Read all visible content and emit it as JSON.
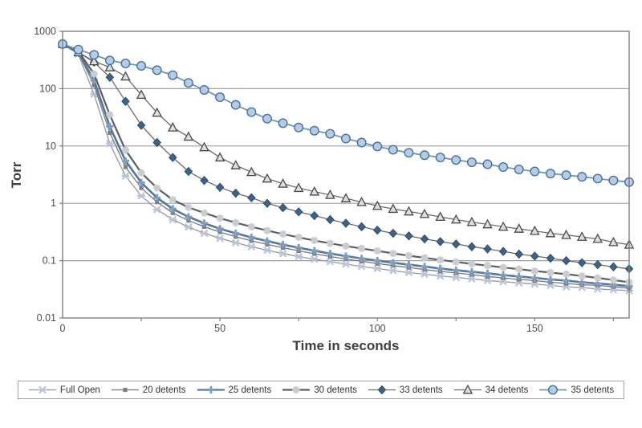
{
  "figure": {
    "background_color": "#ffffff",
    "plot_border_color": "#7f7f7f",
    "gridline_color": "#a0a0a0"
  },
  "chart_data": {
    "type": "line",
    "title": "",
    "xlabel": "Time in seconds",
    "ylabel": "Torr",
    "y_scale": "log",
    "xlim": [
      0,
      180
    ],
    "ylim": [
      0.01,
      1000
    ],
    "x_ticks": [
      0,
      50,
      100,
      150
    ],
    "x_minor_tick_step": 25,
    "y_ticks": [
      1000,
      100,
      10,
      1,
      0.1,
      0.01
    ],
    "grid": "horizontal decade gridlines on",
    "legend_position": "bottom",
    "x": [
      0,
      5,
      10,
      15,
      20,
      25,
      30,
      35,
      40,
      45,
      50,
      55,
      60,
      65,
      70,
      75,
      80,
      85,
      90,
      95,
      100,
      105,
      110,
      115,
      120,
      125,
      130,
      135,
      140,
      145,
      150,
      155,
      160,
      165,
      170,
      175,
      180
    ],
    "series": [
      {
        "name": "Full Open",
        "marker": "x-star",
        "line_color": "#9097a3",
        "line_width": 1.3,
        "marker_color": "#b9c3d7",
        "marker_edge": "#b9c3d7",
        "values": [
          600,
          400,
          80,
          11,
          3.0,
          1.35,
          0.78,
          0.52,
          0.385,
          0.3,
          0.245,
          0.205,
          0.175,
          0.152,
          0.133,
          0.118,
          0.106,
          0.096,
          0.087,
          0.079,
          0.073,
          0.067,
          0.062,
          0.058,
          0.054,
          0.051,
          0.048,
          0.045,
          0.043,
          0.041,
          0.039,
          0.037,
          0.035,
          0.034,
          0.032,
          0.031,
          0.03
        ]
      },
      {
        "name": "20 detents",
        "marker": "square",
        "line_color": "#787878",
        "line_width": 1.3,
        "marker_color": "#7f7f7f",
        "marker_edge": "#6a6a6a",
        "values": [
          600,
          420,
          115,
          17,
          4.3,
          1.85,
          1.05,
          0.68,
          0.5,
          0.39,
          0.315,
          0.262,
          0.222,
          0.192,
          0.168,
          0.148,
          0.132,
          0.118,
          0.107,
          0.097,
          0.089,
          0.082,
          0.076,
          0.07,
          0.065,
          0.061,
          0.057,
          0.053,
          0.05,
          0.047,
          0.045,
          0.042,
          0.04,
          0.038,
          0.037,
          0.035,
          0.033
        ]
      },
      {
        "name": "25 detents",
        "marker": "plus",
        "line_color": "#53779e",
        "line_width": 2.6,
        "marker_color": "#7e9dbf",
        "marker_edge": "#7e9dbf",
        "values": [
          600,
          430,
          140,
          22,
          5.5,
          2.3,
          1.25,
          0.8,
          0.58,
          0.45,
          0.36,
          0.3,
          0.255,
          0.22,
          0.19,
          0.168,
          0.149,
          0.133,
          0.12,
          0.109,
          0.1,
          0.092,
          0.085,
          0.079,
          0.073,
          0.068,
          0.064,
          0.06,
          0.056,
          0.053,
          0.05,
          0.047,
          0.045,
          0.042,
          0.04,
          0.038,
          0.036
        ]
      },
      {
        "name": "30 detents",
        "marker": "asterisk",
        "line_color": "#5f5f5f",
        "line_width": 2.2,
        "marker_color": "#c9cdd3",
        "marker_edge": "#c9cdd3",
        "values": [
          600,
          450,
          180,
          35,
          8.5,
          3.4,
          1.85,
          1.15,
          0.85,
          0.68,
          0.55,
          0.46,
          0.39,
          0.335,
          0.29,
          0.255,
          0.225,
          0.2,
          0.18,
          0.163,
          0.148,
          0.134,
          0.122,
          0.112,
          0.103,
          0.095,
          0.088,
          0.082,
          0.076,
          0.071,
          0.066,
          0.062,
          0.058,
          0.054,
          0.05,
          0.046,
          0.042
        ]
      },
      {
        "name": "33 detents",
        "marker": "diamond",
        "line_color": "#6b6b6b",
        "line_width": 1.3,
        "marker_color": "#3d6486",
        "marker_edge": "#2e4d69",
        "values": [
          600,
          430,
          290,
          158,
          60,
          23,
          11.5,
          6.3,
          3.6,
          2.5,
          1.9,
          1.5,
          1.25,
          1.0,
          0.84,
          0.71,
          0.61,
          0.52,
          0.45,
          0.39,
          0.34,
          0.3,
          0.27,
          0.24,
          0.215,
          0.195,
          0.175,
          0.16,
          0.145,
          0.13,
          0.12,
          0.11,
          0.1,
          0.092,
          0.085,
          0.078,
          0.072
        ]
      },
      {
        "name": "34 detents",
        "marker": "triangle",
        "line_color": "#6b6b6b",
        "line_width": 1.3,
        "marker_color": "#dcdfe3",
        "marker_edge": "#4a4a4a",
        "values": [
          600,
          430,
          300,
          235,
          163,
          78,
          38,
          21,
          14.5,
          9.5,
          6.3,
          4.6,
          3.5,
          2.7,
          2.2,
          1.85,
          1.6,
          1.4,
          1.22,
          1.05,
          0.9,
          0.8,
          0.72,
          0.65,
          0.58,
          0.52,
          0.47,
          0.43,
          0.39,
          0.36,
          0.33,
          0.3,
          0.28,
          0.26,
          0.24,
          0.21,
          0.19
        ]
      },
      {
        "name": "35 detents",
        "marker": "circle",
        "line_color": "#6e95ba",
        "line_width": 1.8,
        "marker_color": "#b4cce6",
        "marker_edge": "#4a7197",
        "values": [
          600,
          480,
          390,
          310,
          275,
          250,
          210,
          172,
          126,
          95,
          71,
          52,
          39,
          30,
          25,
          21,
          18.5,
          16.3,
          13.5,
          11.5,
          9.8,
          8.6,
          7.6,
          6.9,
          6.3,
          5.7,
          5.2,
          4.8,
          4.3,
          3.9,
          3.6,
          3.3,
          3.1,
          2.9,
          2.7,
          2.5,
          2.35
        ]
      }
    ]
  }
}
